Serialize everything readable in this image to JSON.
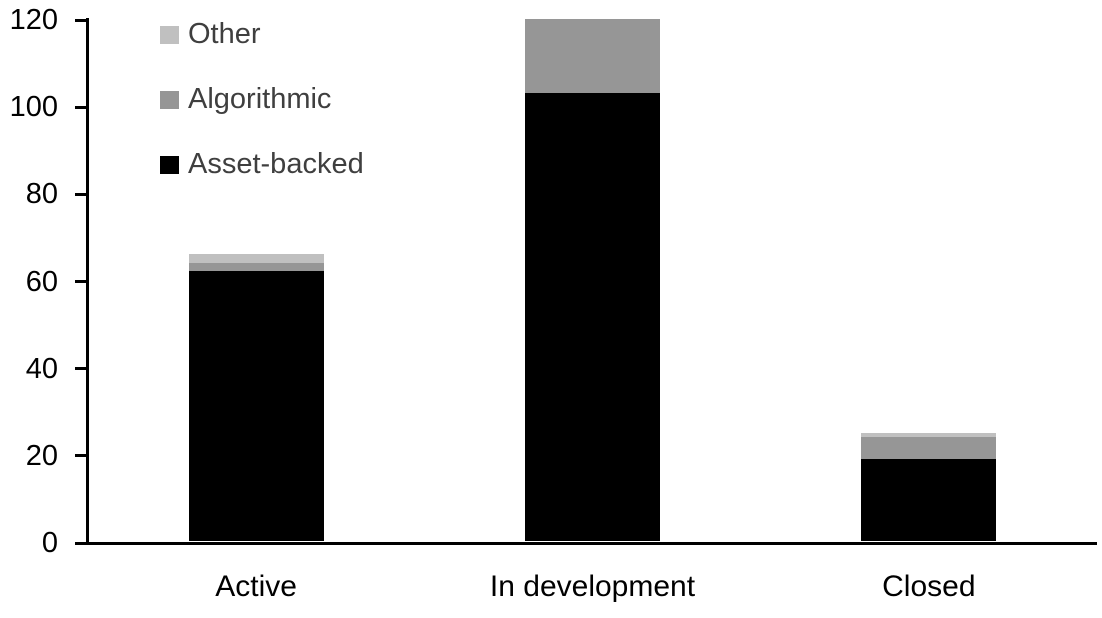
{
  "chart_data": {
    "type": "bar",
    "stacked": true,
    "title": "",
    "xlabel": "",
    "ylabel": "",
    "categories": [
      "Active",
      "In development",
      "Closed"
    ],
    "series": [
      {
        "name": "Asset-backed",
        "color": "#000000",
        "values": [
          62,
          103,
          19
        ]
      },
      {
        "name": "Algorithmic",
        "color": "#969696",
        "values": [
          2,
          17,
          5
        ]
      },
      {
        "name": "Other",
        "color": "#c0c0c0",
        "values": [
          2,
          0,
          1
        ]
      }
    ],
    "totals": [
      66,
      120,
      25
    ],
    "ylim": [
      0,
      120
    ],
    "yticks": [
      0,
      20,
      40,
      60,
      80,
      100,
      120
    ],
    "grid": false,
    "legend_position": "top-left",
    "legend_order": [
      "Other",
      "Algorithmic",
      "Asset-backed"
    ]
  },
  "colors": {
    "background": "#ffffff",
    "axis": "#000000",
    "tick_label_text": "#000000",
    "category_label_text": "#000000",
    "legend_text": "#3f3f3f"
  }
}
